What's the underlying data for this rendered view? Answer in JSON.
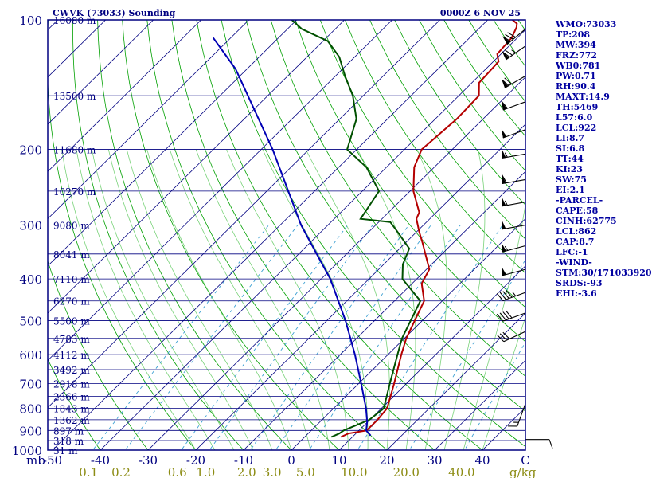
{
  "header": {
    "station": "CWVK (73033) Sounding",
    "time": "0000Z  6 NOV 25"
  },
  "colors": {
    "frame": "#000080",
    "isotherm": "#000080",
    "isobar": "#000080",
    "dry_adiabat": "#00a000",
    "moist_adiabat": "#78d278",
    "mixing_ratio": "#3ca0d2",
    "temperature": "#b40000",
    "dewpoint": "#005000",
    "parcel": "#0000b4",
    "wind_barb": "#000000",
    "pressure_label": "#000080",
    "mixratio_label": "#8c8c14"
  },
  "sidebar": [
    "WMO:73033",
    "TP:208",
    "MW:394",
    "FRZ:772",
    "WB0:781",
    "PW:0.71",
    "RH:90.4",
    "MAXT:14.9",
    "TH:5469",
    "L57:6.0",
    "LCL:922",
    "LI:8.7",
    "SI:6.8",
    "TT:44",
    "KI:23",
    "SW:75",
    "EI:2.1",
    "-PARCEL-",
    "CAPE:58",
    "CINH:62775",
    "LCL:862",
    "CAP:8.7",
    "LFC:-1",
    "-WIND-",
    "STM:30/171033920",
    "SRDS:-93",
    "EHI:-3.6"
  ],
  "chart_data": {
    "type": "skew-t log-p sounding diagram",
    "pressure_levels_mb": [
      "100",
      "200",
      "300",
      "400",
      "500",
      "600",
      "700",
      "800",
      "900",
      "1000"
    ],
    "pressure_axis_unit": "mb",
    "pressure_range_mb": [
      1000,
      100
    ],
    "temperature_ticks_c": [
      "-50",
      "-40",
      "-30",
      "-20",
      "-10",
      "0",
      "10",
      "20",
      "30",
      "40"
    ],
    "temperature_axis_unit": "C",
    "mixing_ratio_ticks": [
      "0.1",
      "0.2",
      "0.6",
      "1.0",
      "2.0",
      "3.0",
      "5.0",
      "10.0",
      "20.0",
      "40.0"
    ],
    "mixing_ratio_unit": "g/kg",
    "height_labels": [
      {
        "p": 100,
        "text": "16080 m"
      },
      {
        "p": 150,
        "text": "13500 m"
      },
      {
        "p": 200,
        "text": "11680 m"
      },
      {
        "p": 250,
        "text": "10270 m"
      },
      {
        "p": 300,
        "text": "9080 m"
      },
      {
        "p": 350,
        "text": "8041 m"
      },
      {
        "p": 400,
        "text": "7110 m"
      },
      {
        "p": 450,
        "text": "6270 m"
      },
      {
        "p": 500,
        "text": "5500 m"
      },
      {
        "p": 550,
        "text": "4783 m"
      },
      {
        "p": 600,
        "text": "4112 m"
      },
      {
        "p": 650,
        "text": "3492 m"
      },
      {
        "p": 700,
        "text": "2918 m"
      },
      {
        "p": 750,
        "text": "2366 m"
      },
      {
        "p": 800,
        "text": "1843 m"
      },
      {
        "p": 850,
        "text": "1362 m"
      },
      {
        "p": 900,
        "text": "897 m"
      },
      {
        "p": 950,
        "text": "318 m"
      },
      {
        "p": 1000,
        "text": "31 m"
      }
    ],
    "series": [
      {
        "key": "temperature",
        "points": [
          [
            932,
            7.6
          ],
          [
            915,
            8.4
          ],
          [
            900,
            11.6
          ],
          [
            850,
            11.6
          ],
          [
            800,
            11.2
          ],
          [
            700,
            7.4
          ],
          [
            600,
            2.8
          ],
          [
            550,
            0.4
          ],
          [
            450,
            -3.8
          ],
          [
            410,
            -8
          ],
          [
            380,
            -9.4
          ],
          [
            330,
            -16.4
          ],
          [
            310,
            -19.6
          ],
          [
            290,
            -22.8
          ],
          [
            280,
            -23.6
          ],
          [
            250,
            -29.3
          ],
          [
            220,
            -34.2
          ],
          [
            200,
            -36.4
          ],
          [
            170,
            -35.5
          ],
          [
            150,
            -35.8
          ],
          [
            140,
            -38.5
          ],
          [
            125,
            -38.9
          ],
          [
            120,
            -40.8
          ],
          [
            110,
            -41.2
          ],
          [
            104,
            -42.4
          ],
          [
            102,
            -43.1
          ],
          [
            100,
            -44.8
          ]
        ]
      },
      {
        "key": "dewpoint",
        "points": [
          [
            932,
            5.6
          ],
          [
            915,
            6.5
          ],
          [
            900,
            6.8
          ],
          [
            850,
            9.9
          ],
          [
            800,
            10.5
          ],
          [
            700,
            6.5
          ],
          [
            600,
            2
          ],
          [
            550,
            -0.5
          ],
          [
            450,
            -4.6
          ],
          [
            400,
            -13
          ],
          [
            370,
            -16
          ],
          [
            340,
            -18
          ],
          [
            310,
            -24.2
          ],
          [
            295,
            -27.6
          ],
          [
            290,
            -34.5
          ],
          [
            250,
            -36.5
          ],
          [
            220,
            -44.2
          ],
          [
            200,
            -52
          ],
          [
            170,
            -56.5
          ],
          [
            150,
            -62.2
          ],
          [
            135,
            -68
          ],
          [
            122,
            -73.2
          ],
          [
            112,
            -79
          ],
          [
            105,
            -87
          ],
          [
            100,
            -91
          ]
        ]
      },
      {
        "key": "parcel",
        "points": [
          [
            925,
            13.5
          ],
          [
            900,
            11.5
          ],
          [
            860,
            9.9
          ],
          [
            800,
            6.8
          ],
          [
            700,
            0.5
          ],
          [
            600,
            -6.9
          ],
          [
            500,
            -16.1
          ],
          [
            400,
            -28.1
          ],
          [
            300,
            -45.6
          ],
          [
            200,
            -67.6
          ],
          [
            130,
            -92.4
          ],
          [
            110,
            -103.7
          ]
        ]
      }
    ],
    "wind_barbs": [
      {
        "p": 105,
        "dir": 230,
        "spd": 80
      },
      {
        "p": 115,
        "dir": 235,
        "spd": 75
      },
      {
        "p": 135,
        "dir": 240,
        "spd": 70
      },
      {
        "p": 155,
        "dir": 250,
        "spd": 60
      },
      {
        "p": 180,
        "dir": 250,
        "spd": 50
      },
      {
        "p": 205,
        "dir": 260,
        "spd": 55
      },
      {
        "p": 235,
        "dir": 260,
        "spd": 60
      },
      {
        "p": 265,
        "dir": 260,
        "spd": 55
      },
      {
        "p": 300,
        "dir": 260,
        "spd": 50
      },
      {
        "p": 335,
        "dir": 255,
        "spd": 55
      },
      {
        "p": 380,
        "dir": 255,
        "spd": 50
      },
      {
        "p": 430,
        "dir": 250,
        "spd": 45
      },
      {
        "p": 480,
        "dir": 250,
        "spd": 40
      },
      {
        "p": 530,
        "dir": 245,
        "spd": 30
      },
      {
        "p": 780,
        "dir": 200,
        "spd": 15
      },
      {
        "p": 945,
        "dir": 90,
        "spd": 10
      }
    ]
  }
}
